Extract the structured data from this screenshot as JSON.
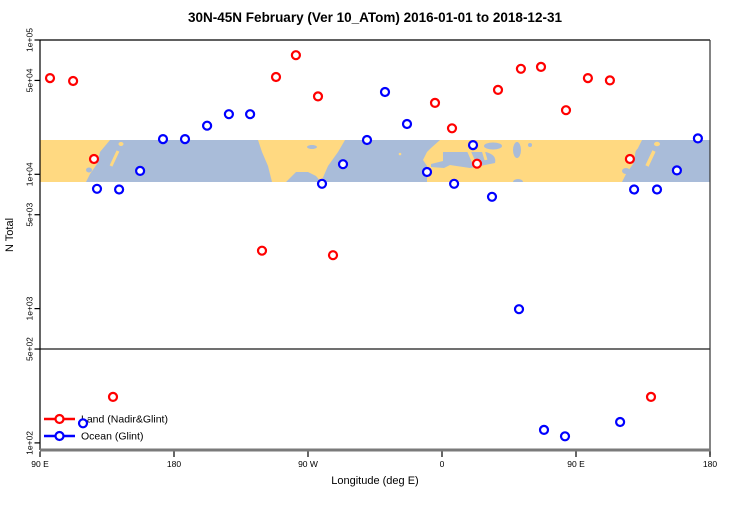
{
  "chart_data": {
    "type": "scatter",
    "title": "30N-45N February (Ver 10_ATom)   2016-01-01 to 2018-12-31",
    "xlabel": "Longitude (deg E)",
    "ylabel": "N Total",
    "latitude_band": "30N-45N",
    "x_axis": {
      "note": "longitude axis wraps eastward starting at 90E, spanning 450 degrees",
      "span_deg": 450,
      "ticks": [
        {
          "pos_deg": 0,
          "label": "90 E"
        },
        {
          "pos_deg": 90,
          "label": "180"
        },
        {
          "pos_deg": 180,
          "label": "90 W"
        },
        {
          "pos_deg": 270,
          "label": "0"
        },
        {
          "pos_deg": 360,
          "label": "90 E"
        },
        {
          "pos_deg": 450,
          "label": "180"
        }
      ]
    },
    "y_axis": {
      "scale": "log",
      "range": [
        88,
        100000
      ],
      "grid": false,
      "ticks": [
        {
          "value": 100000,
          "label": "1e+05"
        },
        {
          "value": 50000,
          "label": "5e+04"
        },
        {
          "value": 10000,
          "label": "1e+04"
        },
        {
          "value": 5000,
          "label": "5e+03"
        },
        {
          "value": 1000,
          "label": "1e+03"
        },
        {
          "value": 500,
          "label": "5e+02"
        },
        {
          "value": 100,
          "label": "1e+02"
        }
      ]
    },
    "separator_line_value": 500,
    "map_band": {
      "description": "world map strip for latitudes 30N-45N drawn across the plot",
      "value_top": 18500,
      "value_bottom": 8700,
      "land_color": "#FFD981",
      "ocean_color": "#A9BCD9"
    },
    "series": [
      {
        "name": "Land (Nadir&Glint)",
        "color": "#FF0000",
        "points": [
          [
            6.7,
            52000
          ],
          [
            22.2,
            49500
          ],
          [
            36.3,
            13000
          ],
          [
            49.0,
            220
          ],
          [
            149.1,
            2700
          ],
          [
            158.5,
            53000
          ],
          [
            171.9,
            77000
          ],
          [
            186.7,
            38000
          ],
          [
            196.8,
            2500
          ],
          [
            265.3,
            34000
          ],
          [
            276.7,
            22000
          ],
          [
            293.5,
            12000
          ],
          [
            307.6,
            42500
          ],
          [
            323.0,
            61000
          ],
          [
            336.5,
            63000
          ],
          [
            353.3,
            30000
          ],
          [
            368.0,
            52000
          ],
          [
            382.8,
            50000
          ],
          [
            396.2,
            13000
          ],
          [
            410.4,
            220
          ]
        ]
      },
      {
        "name": "Ocean (Glint)",
        "color": "#0000FF",
        "points": [
          [
            28.9,
            140
          ],
          [
            38.3,
            7800
          ],
          [
            53.1,
            7700
          ],
          [
            67.2,
            10600
          ],
          [
            82.6,
            18300
          ],
          [
            97.4,
            18300
          ],
          [
            112.2,
            23000
          ],
          [
            126.9,
            28000
          ],
          [
            141.1,
            28000
          ],
          [
            189.4,
            8500
          ],
          [
            203.5,
            11900
          ],
          [
            219.6,
            18000
          ],
          [
            231.7,
            41000
          ],
          [
            246.5,
            23700
          ],
          [
            259.9,
            10400
          ],
          [
            278.1,
            8500
          ],
          [
            290.8,
            16500
          ],
          [
            303.6,
            6800
          ],
          [
            321.7,
            990
          ],
          [
            338.5,
            125
          ],
          [
            352.6,
            112
          ],
          [
            389.6,
            143
          ],
          [
            399.0,
            7700
          ],
          [
            414.4,
            7700
          ],
          [
            427.8,
            10700
          ],
          [
            441.9,
            18500
          ]
        ]
      }
    ]
  },
  "legend": {
    "position": "bottom-left"
  }
}
